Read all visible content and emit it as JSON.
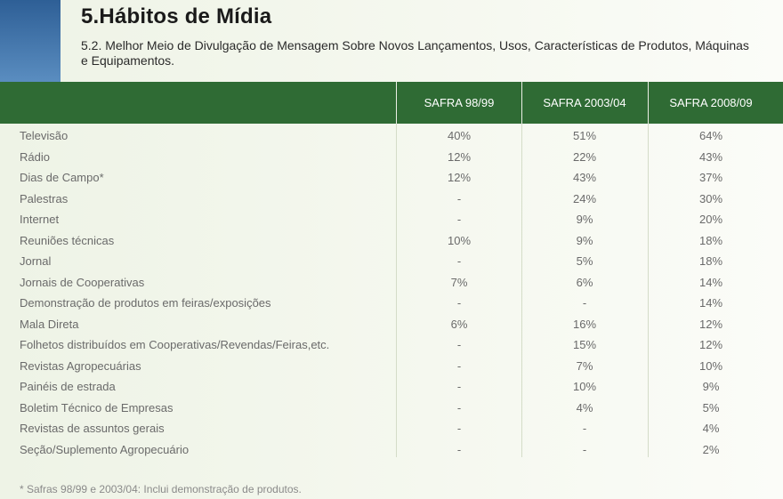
{
  "header": {
    "title": "5.Hábitos de Mídia",
    "subtitle": "5.2. Melhor Meio de Divulgação de Mensagem Sobre Novos Lançamentos, Usos, Características de Produtos, Máquinas e Equipamentos."
  },
  "table": {
    "columns": [
      "SAFRA 98/99",
      "SAFRA 2003/04",
      "SAFRA 2008/09"
    ],
    "rows": [
      {
        "label": "Televisão",
        "v1": "40%",
        "v2": "51%",
        "v3": "64%"
      },
      {
        "label": "Rádio",
        "v1": "12%",
        "v2": "22%",
        "v3": "43%"
      },
      {
        "label": "Dias de Campo*",
        "v1": "12%",
        "v2": "43%",
        "v3": "37%"
      },
      {
        "label": "Palestras",
        "v1": "-",
        "v2": "24%",
        "v3": "30%"
      },
      {
        "label": "Internet",
        "v1": "-",
        "v2": "9%",
        "v3": "20%"
      },
      {
        "label": "Reuniões técnicas",
        "v1": "10%",
        "v2": "9%",
        "v3": "18%"
      },
      {
        "label": "Jornal",
        "v1": "-",
        "v2": "5%",
        "v3": "18%"
      },
      {
        "label": "Jornais de Cooperativas",
        "v1": "7%",
        "v2": "6%",
        "v3": "14%"
      },
      {
        "label": "Demonstração de produtos em feiras/exposições",
        "v1": "-",
        "v2": "-",
        "v3": "14%"
      },
      {
        "label": "Mala Direta",
        "v1": "6%",
        "v2": "16%",
        "v3": "12%"
      },
      {
        "label": "Folhetos distribuídos em Cooperativas/Revendas/Feiras,etc.",
        "v1": "-",
        "v2": "15%",
        "v3": "12%"
      },
      {
        "label": "Revistas Agropecuárias",
        "v1": "-",
        "v2": "7%",
        "v3": "10%"
      },
      {
        "label": "Painéis de estrada",
        "v1": "-",
        "v2": "10%",
        "v3": "9%"
      },
      {
        "label": "Boletim Técnico de Empresas",
        "v1": "-",
        "v2": "4%",
        "v3": "5%"
      },
      {
        "label": "Revistas de assuntos gerais",
        "v1": "-",
        "v2": "-",
        "v3": "4%"
      },
      {
        "label": "Seção/Suplemento Agropecuário",
        "v1": "-",
        "v2": "-",
        "v3": "2%"
      }
    ]
  },
  "footnote": "* Safras 98/99 e 2003/04: Inclui demonstração de produtos.",
  "colors": {
    "header_green": "#2f6b34",
    "accent_blue": "#2e5f96"
  }
}
